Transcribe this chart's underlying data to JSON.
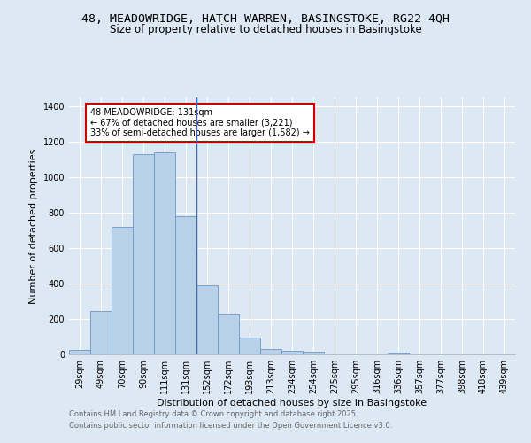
{
  "title1": "48, MEADOWRIDGE, HATCH WARREN, BASINGSTOKE, RG22 4QH",
  "title2": "Size of property relative to detached houses in Basingstoke",
  "xlabel": "Distribution of detached houses by size in Basingstoke",
  "ylabel": "Number of detached properties",
  "categories": [
    "29sqm",
    "49sqm",
    "70sqm",
    "90sqm",
    "111sqm",
    "131sqm",
    "152sqm",
    "172sqm",
    "193sqm",
    "213sqm",
    "234sqm",
    "254sqm",
    "275sqm",
    "295sqm",
    "316sqm",
    "336sqm",
    "357sqm",
    "377sqm",
    "398sqm",
    "418sqm",
    "439sqm"
  ],
  "values": [
    25,
    245,
    718,
    1130,
    1140,
    780,
    390,
    230,
    95,
    28,
    18,
    14,
    0,
    0,
    0,
    12,
    0,
    0,
    0,
    0,
    0
  ],
  "bar_color": "#b8d0e8",
  "bar_edge_color": "#6699cc",
  "subject_bar_index": 5,
  "subject_line_color": "#4466aa",
  "annotation_text": "48 MEADOWRIDGE: 131sqm\n← 67% of detached houses are smaller (3,221)\n33% of semi-detached houses are larger (1,582) →",
  "annotation_box_color": "#ffffff",
  "annotation_box_edge_color": "#cc0000",
  "footer_line1": "Contains HM Land Registry data © Crown copyright and database right 2025.",
  "footer_line2": "Contains public sector information licensed under the Open Government Licence v3.0.",
  "bg_color": "#dde8f5",
  "plot_bg_color": "#dde8f5",
  "ylim": [
    0,
    1450
  ],
  "yticks": [
    0,
    200,
    400,
    600,
    800,
    1000,
    1200,
    1400
  ],
  "grid_color": "#ffffff",
  "title1_fontsize": 9.5,
  "title2_fontsize": 8.5,
  "xlabel_fontsize": 8,
  "ylabel_fontsize": 8,
  "annot_fontsize": 7,
  "footer_fontsize": 6,
  "tick_fontsize": 7
}
